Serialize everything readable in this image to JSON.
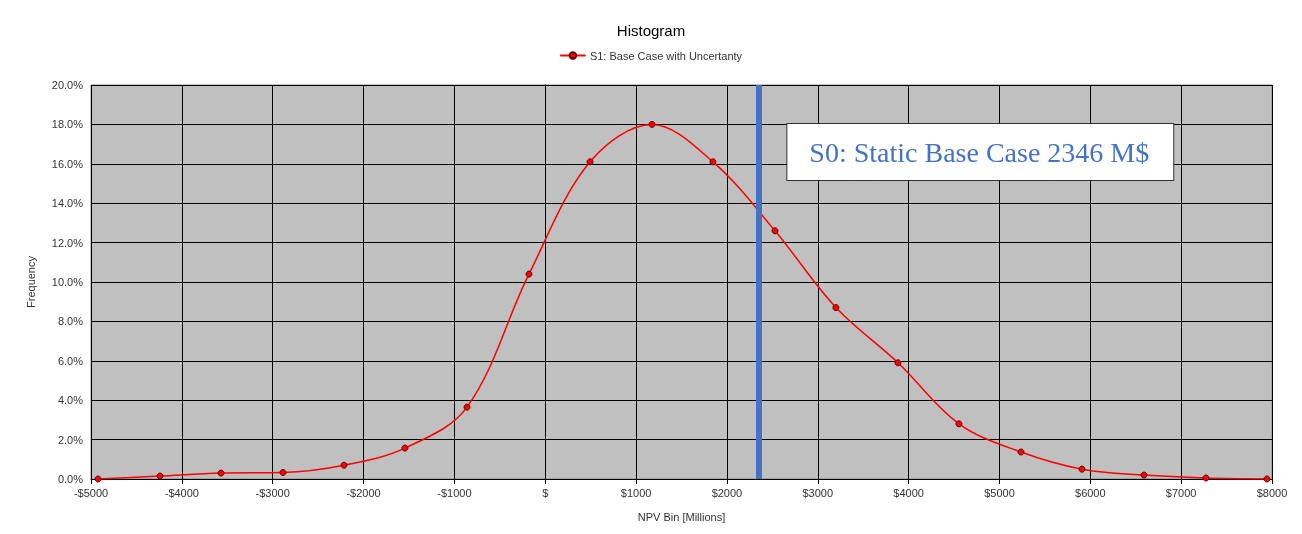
{
  "chart_data": {
    "type": "line",
    "title": "Histogram",
    "xlabel": "NPV Bin [Millions]",
    "ylabel": "Frequency",
    "x": [
      -4923,
      -4240,
      -3569,
      -2887,
      -2215,
      -1544,
      -861,
      -179,
      493,
      1175,
      1846,
      2529,
      3200,
      3883,
      4554,
      5237,
      5908,
      6591,
      7273,
      7944
    ],
    "series": [
      {
        "name": "S1: Base Case with Uncertanty",
        "color": "#ff0000",
        "values": [
          0,
          0.15,
          0.3,
          0.33,
          0.7,
          1.57,
          3.65,
          10.4,
          16.1,
          18.0,
          16.1,
          12.6,
          8.7,
          5.9,
          2.8,
          1.37,
          0.5,
          0.2,
          0.05,
          0
        ]
      }
    ],
    "xlim": [
      -5000,
      8000
    ],
    "xticks": [
      {
        "value": -5000,
        "label": "-$5000"
      },
      {
        "value": -4000,
        "label": "-$4000"
      },
      {
        "value": -3000,
        "label": "-$3000"
      },
      {
        "value": -2000,
        "label": "-$2000"
      },
      {
        "value": -1000,
        "label": "-$1000"
      },
      {
        "value": 0,
        "label": "$"
      },
      {
        "value": 1000,
        "label": "$1000"
      },
      {
        "value": 2000,
        "label": "$2000"
      },
      {
        "value": 3000,
        "label": "$3000"
      },
      {
        "value": 4000,
        "label": "$4000"
      },
      {
        "value": 5000,
        "label": "$5000"
      },
      {
        "value": 6000,
        "label": "$6000"
      },
      {
        "value": 7000,
        "label": "$7000"
      },
      {
        "value": 8000,
        "label": "$8000"
      }
    ],
    "ylim": [
      0,
      20
    ],
    "yticks": [
      {
        "value": 0,
        "label": "0.0%"
      },
      {
        "value": 2,
        "label": "2.0%"
      },
      {
        "value": 4,
        "label": "4.0%"
      },
      {
        "value": 6,
        "label": "6.0%"
      },
      {
        "value": 8,
        "label": "8.0%"
      },
      {
        "value": 10,
        "label": "10.0%"
      },
      {
        "value": 12,
        "label": "12.0%"
      },
      {
        "value": 14,
        "label": "14.0%"
      },
      {
        "value": 16,
        "label": "16.0%"
      },
      {
        "value": 18,
        "label": "18.0%"
      },
      {
        "value": 20,
        "label": "20.0%"
      }
    ],
    "ref_lines": [
      {
        "axis": "x",
        "value": 2346,
        "label": "S0: Static Base Case 2346 M$",
        "color": "#4472c4"
      }
    ],
    "grid": true,
    "legend": "top",
    "marker": "circle",
    "line_style": "solid"
  }
}
